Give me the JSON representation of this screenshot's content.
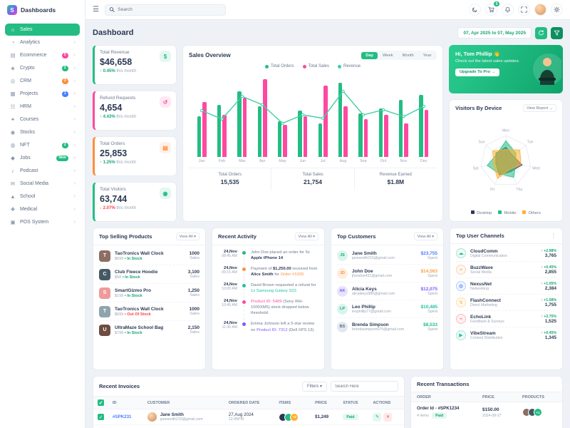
{
  "sidebar": {
    "title": "Dashboards",
    "items": [
      {
        "label": "Sales",
        "icon": "home-icon",
        "glyph": "⌂",
        "active": true
      },
      {
        "label": "Analytics",
        "icon": "analytics-icon",
        "glyph": "◔",
        "chevron": true
      },
      {
        "label": "Ecommerce",
        "icon": "ecommerce-icon",
        "glyph": "▤",
        "badge": "5",
        "badge_color": "#fd49a0",
        "chevron": true
      },
      {
        "label": "Crypto",
        "icon": "crypto-icon",
        "glyph": "◈",
        "badge": "2",
        "badge_color": "#23bd83",
        "chevron": true
      },
      {
        "label": "CRM",
        "icon": "crm-icon",
        "glyph": "◎",
        "badge": "3",
        "badge_color": "#ff8e3c",
        "chevron": true
      },
      {
        "label": "Projects",
        "icon": "projects-icon",
        "glyph": "▦",
        "badge": "1",
        "badge_color": "#4a7dff",
        "chevron": true
      },
      {
        "label": "HRM",
        "icon": "hrm-icon",
        "glyph": "☷",
        "chevron": true
      },
      {
        "label": "Courses",
        "icon": "courses-icon",
        "glyph": "✦",
        "chevron": true
      },
      {
        "label": "Stocks",
        "icon": "stocks-icon",
        "glyph": "◉",
        "chevron": true
      },
      {
        "label": "NFT",
        "icon": "nft-icon",
        "glyph": "◍",
        "badge": "2",
        "badge_color": "#23bd83",
        "chevron": true
      },
      {
        "label": "Jobs",
        "icon": "jobs-icon",
        "glyph": "◆",
        "badge": "New",
        "badge_color": "#23bd83",
        "chevron": true
      },
      {
        "label": "Podcast",
        "icon": "podcast-icon",
        "glyph": "♪",
        "chevron": true
      },
      {
        "label": "Social Media",
        "icon": "social-media-icon",
        "glyph": "✉",
        "chevron": true
      },
      {
        "label": "School",
        "icon": "school-icon",
        "glyph": "▲",
        "chevron": true
      },
      {
        "label": "Medical",
        "icon": "medical-icon",
        "glyph": "✚",
        "chevron": true
      },
      {
        "label": "POS System",
        "icon": "pos-icon",
        "glyph": "▣",
        "chevron": true
      }
    ]
  },
  "topbar": {
    "search_placeholder": "Search",
    "cart_badge": "5"
  },
  "page": {
    "title": "Dashboard",
    "date_range": "07, Apr 2025 to 07, May 2025"
  },
  "stats": [
    {
      "label": "Total Revenue",
      "value": "$46,658",
      "delta": "0.45%",
      "dir": "up",
      "note": "this month",
      "color": "#23bd83",
      "icon": "revenue-icon",
      "glyph": "$"
    },
    {
      "label": "Refund Requests",
      "value": "4,654",
      "delta": "4.43%",
      "dir": "up",
      "note": "this month",
      "color": "#fd49a0",
      "icon": "refund-icon",
      "glyph": "↺"
    },
    {
      "label": "Total Orders",
      "value": "25,853",
      "delta": "1.25%",
      "dir": "up",
      "note": "this month",
      "color": "#ff8e3c",
      "icon": "orders-icon",
      "glyph": "▤"
    },
    {
      "label": "Total Visitors",
      "value": "63,744",
      "delta": "2.07%",
      "dir": "down",
      "note": "this month",
      "color": "#23bd83",
      "icon": "visitors-icon",
      "glyph": "◉"
    }
  ],
  "sales_overview": {
    "title": "Sales Overview",
    "tabs": [
      "Day",
      "Week",
      "Month",
      "Year"
    ],
    "active_tab": "Day",
    "footer": [
      {
        "label": "Total Orders",
        "value": "15,535"
      },
      {
        "label": "Total Sales",
        "value": "21,754"
      },
      {
        "label": "Revenue Earned",
        "value": "$1.8M"
      }
    ]
  },
  "promo": {
    "greeting": "Hi, Tom Phillip 👋",
    "message": "Check out the latest sales updates.",
    "button": "Upgrade To Pro →"
  },
  "visitors": {
    "title": "Visitors By Device",
    "link": "View Report →"
  },
  "top_products": {
    "title": "Top Selling Products",
    "link": "View All ▾",
    "sales_suffix": "Sales",
    "items": [
      {
        "name": "TaoTronics Wall Clock",
        "price": "$699",
        "stock": "In Stock",
        "stock_ok": true,
        "sales": "1000",
        "img": "#8d6e63"
      },
      {
        "name": "Club Fleece Hoodie",
        "price": "$58",
        "stock": "In Stock",
        "stock_ok": true,
        "sales": "3,100",
        "img": "#455a64"
      },
      {
        "name": "SmartGizmo Pro",
        "price": "$199",
        "stock": "In Stock",
        "stock_ok": true,
        "sales": "1,250",
        "img": "#ef9a9a"
      },
      {
        "name": "TaoTronics Wall Clock",
        "price": "$699",
        "stock": "Out Of Stock",
        "stock_ok": false,
        "sales": "1000",
        "img": "#90a4ae"
      },
      {
        "name": "UltraMaze School Bag",
        "price": "$799",
        "stock": "In Stock",
        "stock_ok": true,
        "sales": "2,150",
        "img": "#6d4c41"
      }
    ]
  },
  "recent_activity": {
    "title": "Recent Activity",
    "link": "View All ▾",
    "items": [
      {
        "date": "24,Nov",
        "time": "08:45 AM",
        "dot": "#23bd83",
        "segments": [
          {
            "t": "John Doe placed an order for 5x "
          },
          {
            "t": "Apple iPhone 14",
            "c": "#2b3954",
            "b": true
          }
        ]
      },
      {
        "date": "24,Nov",
        "time": "09:15 AM",
        "dot": "#ff8e3c",
        "segments": [
          {
            "t": "Payment of "
          },
          {
            "t": "$1,250.00",
            "c": "#2b3954",
            "b": true
          },
          {
            "t": " received from "
          },
          {
            "t": "Alice Smith",
            "c": "#2b3954",
            "b": true
          },
          {
            "t": " for "
          },
          {
            "t": "Order #1020.",
            "c": "#ff8e3c"
          }
        ]
      },
      {
        "date": "24,Nov",
        "time": "10:00 AM",
        "dot": "#21c2a5",
        "segments": [
          {
            "t": "David Brown requested a refund for "
          },
          {
            "t": "1x Samsung Galaxy S22.",
            "c": "#21c2a5"
          }
        ]
      },
      {
        "date": "24,Nov",
        "time": "10:45 AM",
        "dot": "#fd49a0",
        "segments": [
          {
            "t": "Product ID: 5409",
            "c": "#fd49a0"
          },
          {
            "t": " (Sony WH-1000XM5) stock dropped below threshold."
          }
        ]
      },
      {
        "date": "24,Nov",
        "time": "11:30 AM",
        "dot": "#7c5cfc",
        "segments": [
          {
            "t": "Emma Johnson left a 5-star review on "
          },
          {
            "t": "Product ID: 7312",
            "c": "#7c5cfc"
          },
          {
            "t": " (Dell XPS 13)."
          }
        ]
      }
    ]
  },
  "top_customers": {
    "title": "Top Customers",
    "link": "View All ▾",
    "sub": "Spent",
    "items": [
      {
        "initials": "JS",
        "name": "Jane Smith",
        "email": "janesmith215@gmail.com",
        "amount": "$23,755",
        "amount_color": "#4a7dff",
        "av_bg": "#dcf5ec",
        "av_fg": "#17a673"
      },
      {
        "initials": "JD",
        "name": "John Doe",
        "email": "jhondoe431@gmail.com",
        "amount": "$14,563",
        "amount_color": "#ff9f43",
        "av_bg": "#fdeedd",
        "av_fg": "#ff8e3c"
      },
      {
        "initials": "AK",
        "name": "Alicia Keys",
        "email": "aliciakeys980@gmail.com",
        "amount": "$12,075",
        "amount_color": "#7c5cfc",
        "av_bg": "#e8e3fd",
        "av_fg": "#7c5cfc"
      },
      {
        "initials": "LP",
        "name": "Leo Phillip",
        "email": "leophillip77@gmail.com",
        "amount": "$10,485",
        "amount_color": "#21c2a5",
        "av_bg": "#d9f4ef",
        "av_fg": "#17a673"
      },
      {
        "initials": "BS",
        "name": "Brenda Simpson",
        "email": "brendasimpson075@gmail.com",
        "amount": "$8,533",
        "amount_color": "#23bd83",
        "av_bg": "#e2e8f0",
        "av_fg": "#5b6b83"
      }
    ]
  },
  "top_channels": {
    "title": "Top User Channels",
    "items": [
      {
        "name": "CloudComm",
        "desc": "Digital Communication",
        "delta": "+2.98%",
        "value": "3,765",
        "glyph": "☁",
        "color": "#23bd83",
        "icon": "cloud-icon"
      },
      {
        "name": "BuzzWave",
        "desc": "Social Media",
        "delta": "+0.45%",
        "value": "2,855",
        "glyph": "≈",
        "color": "#ff8e3c",
        "icon": "wave-icon"
      },
      {
        "name": "NexusNet",
        "desc": "Networking",
        "delta": "+1.05%",
        "value": "2,384",
        "glyph": "◍",
        "color": "#4a7dff",
        "icon": "globe-icon"
      },
      {
        "name": "FlashConnect",
        "desc": "Direct Marketing",
        "delta": "+1.58%",
        "value": "1,755",
        "glyph": "↯",
        "color": "#ffb02e",
        "icon": "flash-icon"
      },
      {
        "name": "EchoLink",
        "desc": "Feedback & Surveys",
        "delta": "+3.75%",
        "value": "1,525",
        "glyph": "⌁",
        "color": "#fb4f4f",
        "icon": "link-icon"
      },
      {
        "name": "VibeStream",
        "desc": "Content Distribution",
        "delta": "+0.45%",
        "value": "1,345",
        "glyph": "▶",
        "color": "#21c2a5",
        "icon": "stream-icon"
      }
    ]
  },
  "invoices": {
    "title": "Recent Invoices",
    "filters": "Filters ▾",
    "search_placeholder": "Search Here",
    "columns": [
      "ID",
      "Customer",
      "Ordered Date",
      "Items",
      "Price",
      "Status",
      "Actions"
    ],
    "rows": [
      {
        "id": "#SPK231",
        "name": "Jane Smith",
        "email": "janesmith215@gmail.com",
        "date": "27,Aug 2024",
        "time": "12:45PM",
        "items_extra": "+2",
        "price": "$1,249",
        "status": "Paid"
      }
    ]
  },
  "transactions": {
    "title": "Recent Transactions",
    "columns": [
      "Order",
      "Price",
      "Products"
    ],
    "rows": [
      {
        "order": "Order Id - #SPK1234",
        "items": "4 items",
        "status": "Paid",
        "price": "$150.00",
        "date": "2024-08-27",
        "extra": "+1"
      }
    ]
  },
  "chart_data": [
    {
      "type": "bar",
      "title": "Sales Overview",
      "categories": [
        "Jan",
        "Feb",
        "Mar",
        "Apr",
        "May",
        "Jun",
        "Jul",
        "Aug",
        "Sep",
        "Oct",
        "Nov",
        "Dec"
      ],
      "series": [
        {
          "name": "Total Orders",
          "color": "#23bd83",
          "values": [
            48,
            62,
            78,
            60,
            42,
            55,
            40,
            88,
            52,
            58,
            68,
            74
          ]
        },
        {
          "name": "Total Sales",
          "color": "#fd49a0",
          "values": [
            65,
            50,
            70,
            92,
            38,
            48,
            85,
            60,
            45,
            50,
            40,
            56
          ]
        },
        {
          "name": "Revenue",
          "type": "line",
          "color": "#3fd0a4",
          "values": [
            55,
            45,
            72,
            62,
            40,
            50,
            46,
            78,
            50,
            56,
            48,
            60
          ]
        }
      ],
      "ylim": [
        0,
        100
      ],
      "legend_position": "top",
      "grid": false
    },
    {
      "type": "radar",
      "title": "Visitors By Device",
      "axes": [
        "Mon",
        "Tue",
        "Wed",
        "Thu",
        "Fri",
        "Sat",
        "Sun"
      ],
      "series": [
        {
          "name": "Desktop",
          "color": "#2b3954",
          "values": [
            55,
            35,
            65,
            45,
            60,
            40,
            50
          ]
        },
        {
          "name": "Mobile",
          "color": "#23bd83",
          "values": [
            80,
            50,
            40,
            70,
            55,
            75,
            45
          ]
        },
        {
          "name": "Others",
          "color": "#ffb02e",
          "values": [
            45,
            70,
            60,
            35,
            75,
            50,
            65
          ]
        }
      ],
      "legend_position": "bottom"
    }
  ]
}
